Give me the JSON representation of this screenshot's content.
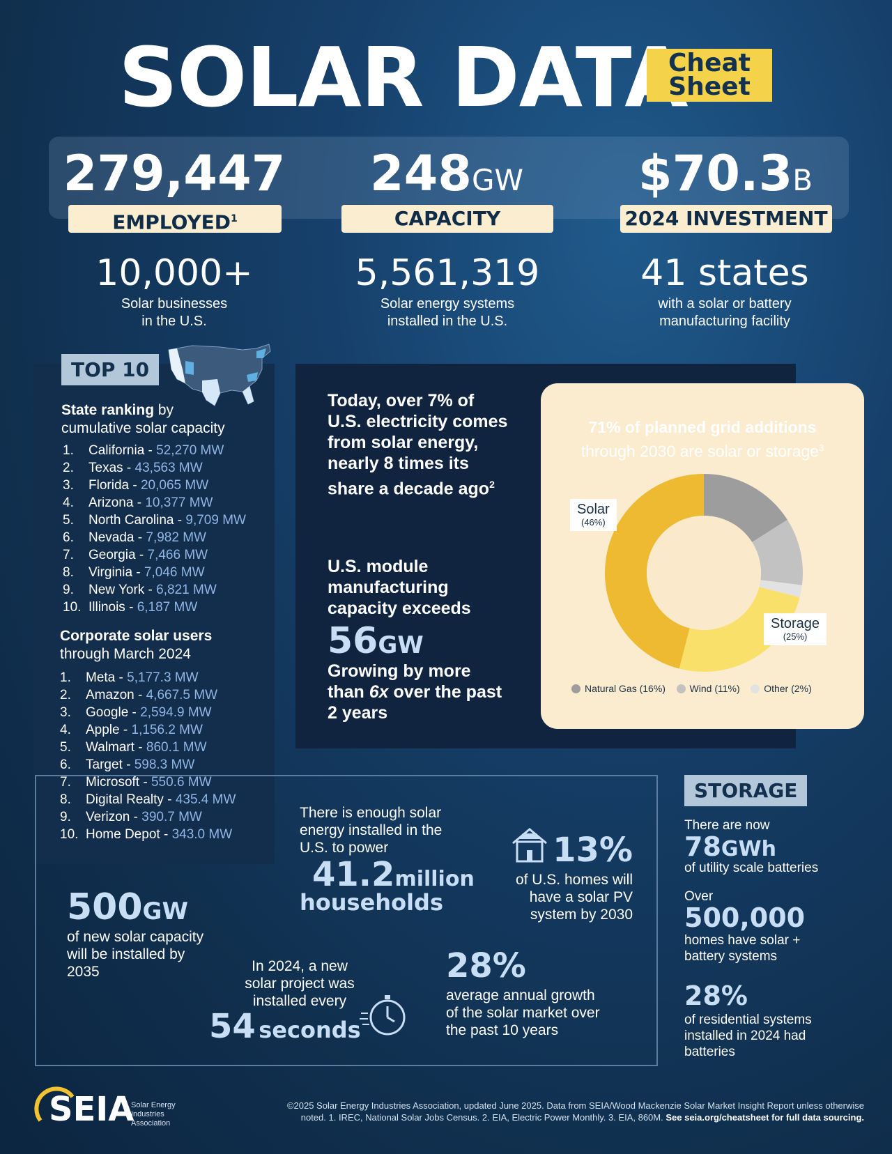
{
  "header": {
    "title": "SOLAR DATA",
    "badge_line1": "Cheat",
    "badge_line2": "Sheet"
  },
  "top_stats": [
    {
      "value": "279,447",
      "unit": "",
      "label": "EMPLOYED",
      "sup": "1"
    },
    {
      "value": "248",
      "unit": "GW",
      "label": "CAPACITY",
      "sup": ""
    },
    {
      "value": "$70.3",
      "unit": "B",
      "label": "2024 INVESTMENT",
      "sup": ""
    }
  ],
  "mid_stats": [
    {
      "value": "10,000+",
      "line1": "Solar businesses",
      "line2": "in the U.S."
    },
    {
      "value": "5,561,319",
      "line1": "Solar energy systems",
      "line2": "installed in the U.S."
    },
    {
      "value": "41 states",
      "line1": "with a solar or battery",
      "line2": "manufacturing facility"
    }
  ],
  "top10": {
    "tag": "TOP 10",
    "state_head_bold": "State ranking",
    "state_head_rest": " by",
    "state_head_line2": "cumulative solar capacity",
    "states": [
      {
        "n": "1.",
        "name": "California",
        "value": "52,270 MW"
      },
      {
        "n": "2.",
        "name": "Texas",
        "value": "43,563 MW"
      },
      {
        "n": "3.",
        "name": "Florida",
        "value": "20,065 MW"
      },
      {
        "n": "4.",
        "name": "Arizona",
        "value": "10,377 MW"
      },
      {
        "n": "5.",
        "name": "North Carolina",
        "value": "9,709 MW"
      },
      {
        "n": "6.",
        "name": "Nevada",
        "value": "7,982 MW"
      },
      {
        "n": "7.",
        "name": "Georgia",
        "value": "7,466 MW"
      },
      {
        "n": "8.",
        "name": "Virginia",
        "value": "7,046 MW"
      },
      {
        "n": "9.",
        "name": "New York",
        "value": "6,821 MW"
      },
      {
        "n": "10.",
        "name": "Illinois",
        "value": "6,187 MW"
      }
    ],
    "corp_head_bold": "Corporate solar users",
    "corp_head_line2": "through March 2024",
    "corporates": [
      {
        "n": "1.",
        "name": "Meta",
        "value": "5,177.3 MW"
      },
      {
        "n": "2.",
        "name": "Amazon",
        "value": "4,667.5 MW"
      },
      {
        "n": "3.",
        "name": "Google",
        "value": "2,594.9 MW"
      },
      {
        "n": "4.",
        "name": "Apple",
        "value": "1,156.2 MW"
      },
      {
        "n": "5.",
        "name": "Walmart",
        "value": "860.1 MW"
      },
      {
        "n": "6.",
        "name": "Target",
        "value": "598.3 MW"
      },
      {
        "n": "7.",
        "name": "Microsoft",
        "value": "550.6 MW"
      },
      {
        "n": "8.",
        "name": "Digital Realty",
        "value": "435.4 MW"
      },
      {
        "n": "9.",
        "name": "Verizon",
        "value": "390.7 MW"
      },
      {
        "n": "10.",
        "name": "Home Depot",
        "value": "343.0 MW"
      }
    ]
  },
  "center": {
    "p1_a": "Today, over ",
    "p1_b": "7% of U.S. electricity comes from solar energy,",
    "p1_c": " nearly 8 times its share a decade ago",
    "p1_sup": "2",
    "p2_line1": "U.S. module",
    "p2_line2": "manufacturing",
    "p2_line3": "capacity exceeds",
    "p2_value": "56",
    "p2_unit": "GW",
    "p2_after_a": "Growing by more than ",
    "p2_after_b": "6x",
    "p2_after_c": " over the past 2 years"
  },
  "chart_data": {
    "type": "pie",
    "title": "71% of planned grid additions",
    "subtitle": "through 2030 are solar or storage",
    "title_sup": "3",
    "categories": [
      "Solar",
      "Storage",
      "Natural Gas",
      "Wind",
      "Other"
    ],
    "values": [
      46,
      25,
      16,
      11,
      2
    ],
    "labels": [
      "(46%)",
      "(25%)",
      "(16%)",
      "(11%)",
      "(2%)"
    ],
    "colors": [
      "#edba32",
      "#f9e06a",
      "#9d9d9d",
      "#c2c2c2",
      "#e2e2e2"
    ],
    "donut": true,
    "legend_position": "bottom"
  },
  "bottom": {
    "b1_value": "500",
    "b1_unit": "GW",
    "b1_line1": "of new solar capacity",
    "b1_line2": "will be installed by",
    "b1_line3": "2035",
    "b2_line1": "There is enough solar",
    "b2_line2": "energy installed in the",
    "b2_line3": "U.S. to power",
    "b2_value": "41.2",
    "b2_unit": "million",
    "b2_after": "households",
    "b3_value": "13%",
    "b3_line1": "of U.S. homes will",
    "b3_line2": "have a solar PV",
    "b3_line3": "system by 2030",
    "b4_line1": "In 2024, a new",
    "b4_line2": "solar project was",
    "b4_line3": "installed every",
    "b4_value": "54",
    "b4_unit": "seconds",
    "b5_value": "28%",
    "b5_line1": "average annual growth",
    "b5_line2": "of the solar market over",
    "b5_line3": "the past 10 years"
  },
  "storage": {
    "tag": "STORAGE",
    "s1_pre": "There are now",
    "s1_value": "78",
    "s1_unit": "GWh",
    "s1_after": "of utility scale batteries",
    "s2_pre": "Over",
    "s2_value": "500,000",
    "s2_line1": "homes have solar +",
    "s2_line2": "battery systems",
    "s3_value": "28%",
    "s3_line1": "of residential systems",
    "s3_line2": "installed in 2024 had",
    "s3_line3": "batteries"
  },
  "footer": {
    "logo": "SEIA",
    "org_line1": "Solar Energy",
    "org_line2": "Industries",
    "org_line3": "Association",
    "note_line1": "©2025 Solar Energy Industries Association, updated June 2025. Data from SEIA/Wood Mackenzie Solar Market Insight Report unless otherwise",
    "note_line2": "noted. 1. IREC, National Solar Jobs Census. 2. EIA, Electric Power Monthly. 3. EIA, 860M.",
    "note_link": "See seia.org/cheatsheet for full data sourcing."
  },
  "colors": {
    "accent_yellow": "#f4d34a",
    "value_blue": "#8fb6e4",
    "pill_cream": "#fbedcf"
  }
}
